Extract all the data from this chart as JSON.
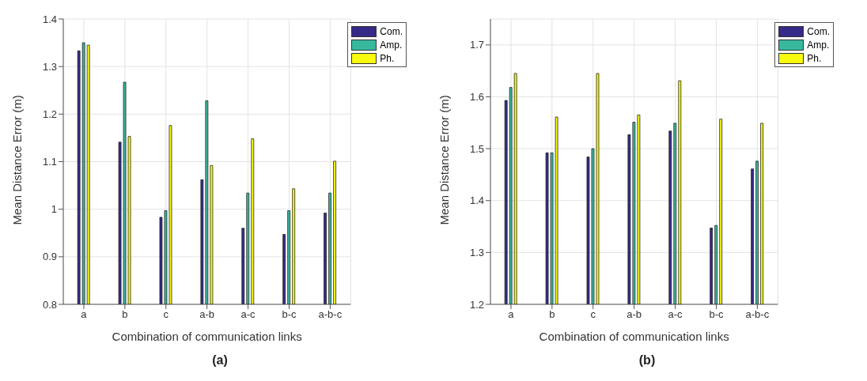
{
  "chart_data": [
    {
      "type": "bar",
      "xlabel": "Combination of communication links",
      "ylabel": "Mean Distance Error (m)",
      "categories": [
        "a",
        "b",
        "c",
        "a-b",
        "a-c",
        "b-c",
        "a-b-c"
      ],
      "ylim": [
        0.8,
        1.4
      ],
      "yticks": [
        0.8,
        0.9,
        1,
        1.1,
        1.2,
        1.3,
        1.4
      ],
      "grid": true,
      "legend": "top right",
      "annotations": [
        "(a)"
      ],
      "series": [
        {
          "name": "Com.",
          "color": "#352a87",
          "values": [
            1.333,
            1.141,
            0.983,
            1.062,
            0.96,
            0.947,
            0.992
          ]
        },
        {
          "name": "Amp.",
          "color": "#38b99e",
          "values": [
            1.35,
            1.267,
            0.997,
            1.228,
            1.034,
            0.997,
            1.034
          ]
        },
        {
          "name": "Ph.",
          "color": "#f9fb0e",
          "values": [
            1.345,
            1.153,
            1.176,
            1.092,
            1.148,
            1.043,
            1.101
          ]
        }
      ]
    },
    {
      "type": "bar",
      "xlabel": "Combination of communication links",
      "ylabel": "Mean Distance Error (m)",
      "categories": [
        "a",
        "b",
        "c",
        "a-b",
        "a-c",
        "b-c",
        "a-b-c"
      ],
      "ylim": [
        1.2,
        1.75
      ],
      "yticks": [
        1.2,
        1.3,
        1.4,
        1.5,
        1.6,
        1.7
      ],
      "grid": true,
      "legend": "top right",
      "annotations": [
        "(b)"
      ],
      "series": [
        {
          "name": "Com.",
          "color": "#352a87",
          "values": [
            1.593,
            1.492,
            1.484,
            1.527,
            1.534,
            1.347,
            1.461
          ]
        },
        {
          "name": "Amp.",
          "color": "#38b99e",
          "values": [
            1.618,
            1.492,
            1.5,
            1.551,
            1.549,
            1.352,
            1.476
          ]
        },
        {
          "name": "Ph.",
          "color": "#f9fb0e",
          "values": [
            1.645,
            1.561,
            1.645,
            1.565,
            1.631,
            1.557,
            1.549
          ]
        }
      ]
    }
  ]
}
